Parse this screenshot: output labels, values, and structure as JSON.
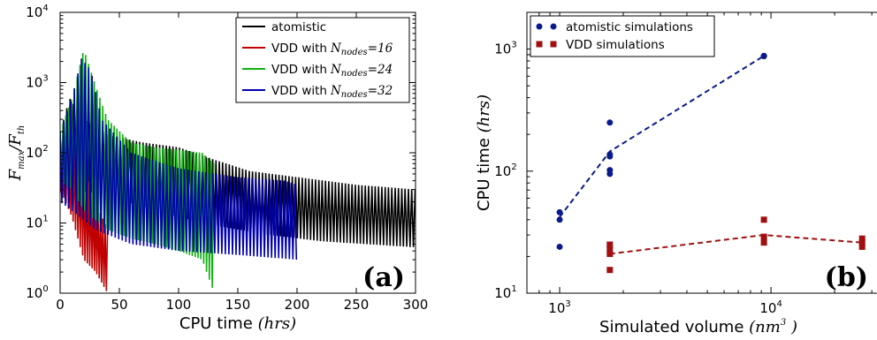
{
  "chart_data": [
    {
      "panel_label": "(a)",
      "type": "line",
      "xlabel": "CPU time",
      "xlabel_unit": "hrs",
      "ylabel_num": "F",
      "ylabel_num_sub": "max",
      "ylabel_den": "F",
      "ylabel_den_sub": "th",
      "xlim": [
        0,
        300
      ],
      "ylim": [
        1,
        10000
      ],
      "yscale": "log",
      "xticks": [
        {
          "label": "0",
          "value": 0
        },
        {
          "label": "50",
          "value": 50
        },
        {
          "label": "100",
          "value": 100
        },
        {
          "label": "150",
          "value": 150
        },
        {
          "label": "200",
          "value": 200
        },
        {
          "label": "250",
          "value": 250
        },
        {
          "label": "300",
          "value": 300
        }
      ],
      "yticks": [
        {
          "base": "10",
          "exp": "0",
          "value": 1
        },
        {
          "base": "10",
          "exp": "1",
          "value": 10
        },
        {
          "base": "10",
          "exp": "2",
          "value": 100
        },
        {
          "base": "10",
          "exp": "3",
          "value": 1000
        },
        {
          "base": "10",
          "exp": "4",
          "value": 10000
        }
      ],
      "legend_position": "top-right",
      "series": [
        {
          "name": "atomistic",
          "color": "#000000",
          "x_end": 300,
          "period": 2.8,
          "hi_curve": [
            [
              0,
              200
            ],
            [
              8,
              600
            ],
            [
              20,
              300
            ],
            [
              40,
              180
            ],
            [
              70,
              140
            ],
            [
              100,
              120
            ],
            [
              130,
              80
            ],
            [
              160,
              55
            ],
            [
              200,
              45
            ],
            [
              250,
              35
            ],
            [
              300,
              30
            ]
          ],
          "lo_curve": [
            [
              0,
              25
            ],
            [
              10,
              30
            ],
            [
              40,
              25
            ],
            [
              80,
              15
            ],
            [
              120,
              10
            ],
            [
              170,
              7
            ],
            [
              220,
              5.5
            ],
            [
              300,
              4.5
            ]
          ]
        },
        {
          "name": "VDD with",
          "sub_var": "N",
          "sub_sub": "nodes",
          "sub_eq": "=16",
          "color": "#c00000",
          "x_end": 40,
          "period": 2.0,
          "hi_curve": [
            [
              0,
              150
            ],
            [
              10,
              120
            ],
            [
              20,
              60
            ],
            [
              30,
              20
            ],
            [
              40,
              8
            ]
          ],
          "lo_curve": [
            [
              0,
              30
            ],
            [
              10,
              12
            ],
            [
              20,
              3
            ],
            [
              30,
              2
            ],
            [
              40,
              1
            ]
          ]
        },
        {
          "name": "VDD with",
          "sub_var": "N",
          "sub_sub": "nodes",
          "sub_eq": "=24",
          "color": "#10b010",
          "x_end": 130,
          "period": 2.4,
          "hi_curve": [
            [
              0,
              200
            ],
            [
              10,
              600
            ],
            [
              20,
              3000
            ],
            [
              30,
              900
            ],
            [
              40,
              300
            ],
            [
              60,
              140
            ],
            [
              80,
              120
            ],
            [
              100,
              110
            ],
            [
              120,
              100
            ],
            [
              130,
              70
            ]
          ],
          "lo_curve": [
            [
              0,
              40
            ],
            [
              10,
              30
            ],
            [
              20,
              15
            ],
            [
              40,
              8
            ],
            [
              60,
              6
            ],
            [
              80,
              5
            ],
            [
              100,
              4
            ],
            [
              120,
              3
            ],
            [
              130,
              1
            ]
          ]
        },
        {
          "name": "VDD with",
          "sub_var": "N",
          "sub_sub": "nodes",
          "sub_eq": "=32",
          "color": "#0000b0",
          "x_end": 200,
          "period": 3.0,
          "hi_curve": [
            [
              0,
              200
            ],
            [
              10,
              600
            ],
            [
              18,
              2200
            ],
            [
              26,
              1500
            ],
            [
              35,
              300
            ],
            [
              60,
              100
            ],
            [
              100,
              60
            ],
            [
              150,
              45
            ],
            [
              190,
              40
            ],
            [
              200,
              35
            ]
          ],
          "lo_curve": [
            [
              0,
              20
            ],
            [
              10,
              15
            ],
            [
              30,
              8
            ],
            [
              60,
              5
            ],
            [
              100,
              4
            ],
            [
              150,
              3.5
            ],
            [
              200,
              3
            ]
          ]
        }
      ]
    },
    {
      "panel_label": "(b)",
      "type": "scatter",
      "xlabel": "Simulated volume",
      "xlabel_unit": "nm",
      "xlabel_unit_sup": "3",
      "ylabel": "CPU time",
      "ylabel_unit": "hrs",
      "xscale": "log",
      "yscale": "log",
      "xlim": [
        700,
        40000
      ],
      "ylim": [
        10,
        2000
      ],
      "xticks": [
        {
          "base": "10",
          "exp": "3",
          "value": 1000
        },
        {
          "base": "10",
          "exp": "4",
          "value": 10000
        }
      ],
      "yticks": [
        {
          "base": "10",
          "exp": "1",
          "value": 10
        },
        {
          "base": "10",
          "exp": "2",
          "value": 100
        },
        {
          "base": "10",
          "exp": "3",
          "value": 1000
        }
      ],
      "legend_position": "top-left",
      "series": [
        {
          "name": "atomistic simulations",
          "marker": "circle",
          "color": "#0a1a8c",
          "points": [
            [
              1000,
              24
            ],
            [
              1000,
              40
            ],
            [
              1000,
              46
            ],
            [
              1728,
              95
            ],
            [
              1728,
              102
            ],
            [
              1728,
              132
            ],
            [
              1728,
              137
            ],
            [
              1728,
              250
            ],
            [
              9261,
              880
            ],
            [
              9261,
              875
            ]
          ],
          "trend": [
            [
              1000,
              42
            ],
            [
              1728,
              145
            ],
            [
              9261,
              880
            ]
          ]
        },
        {
          "name": "VDD simulations",
          "marker": "square",
          "color": "#a01010",
          "points": [
            [
              1728,
              15.5
            ],
            [
              1728,
              21
            ],
            [
              1728,
              23
            ],
            [
              1728,
              25
            ],
            [
              9261,
              26
            ],
            [
              9261,
              29
            ],
            [
              9261,
              40
            ],
            [
              27000,
              24
            ],
            [
              27000,
              26
            ],
            [
              27000,
              28
            ]
          ],
          "trend": [
            [
              1728,
              21
            ],
            [
              9261,
              30
            ],
            [
              27000,
              26
            ]
          ]
        }
      ]
    }
  ]
}
